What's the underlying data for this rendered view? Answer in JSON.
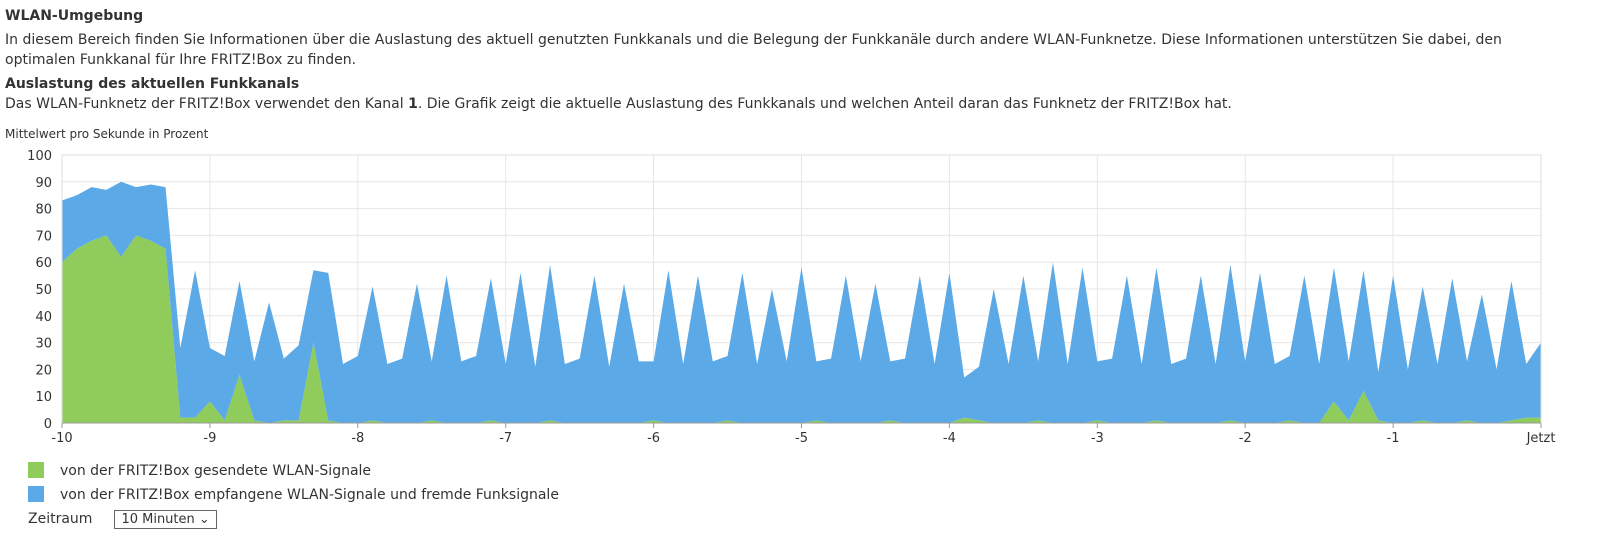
{
  "title": "WLAN-Umgebung",
  "intro": "In diesem Bereich finden Sie Informationen über die Auslastung des aktuell genutzten Funkkanals und die Belegung der Funkkanäle durch andere WLAN-Funknetze. Diese Informationen unterstützen Sie dabei, den optimalen Funkkanal für Ihre FRITZ!Box zu finden.",
  "section_title": "Auslastung des aktuellen Funkkanals",
  "section_text": [
    "Das WLAN-Funknetz der FRITZ!Box verwendet den Kanal ",
    "1",
    ". Die Grafik zeigt die aktuelle Auslastung des Funkkanals und welchen Anteil daran das Funknetz der FRITZ!Box hat."
  ],
  "period_label": "Zeitraum",
  "period_value": "10 Minuten",
  "chart_data": {
    "type": "area",
    "stacked": true,
    "y_label": "Mittelwert pro Sekunde in Prozent",
    "xlim": [
      -10,
      0
    ],
    "xticks": [
      -10,
      -9,
      -8,
      -7,
      -6,
      -5,
      -4,
      -3,
      -2,
      -1,
      {
        "value": 0,
        "label": "Jetzt"
      }
    ],
    "ylim": [
      0,
      100
    ],
    "yticks": [
      0,
      10,
      20,
      30,
      40,
      50,
      60,
      70,
      80,
      90,
      100
    ],
    "grid": true,
    "x": [
      -10,
      -9.9,
      -9.8,
      -9.7,
      -9.6,
      -9.5,
      -9.4,
      -9.3,
      -9.2,
      -9.1,
      -9,
      -8.9,
      -8.8,
      -8.7,
      -8.6,
      -8.5,
      -8.4,
      -8.3,
      -8.2,
      -8.1,
      -8,
      -7.9,
      -7.8,
      -7.7,
      -7.6,
      -7.5,
      -7.4,
      -7.3,
      -7.2,
      -7.1,
      -7,
      -6.9,
      -6.8,
      -6.7,
      -6.6,
      -6.5,
      -6.4,
      -6.3,
      -6.2,
      -6.1,
      -6,
      -5.9,
      -5.8,
      -5.7,
      -5.6,
      -5.5,
      -5.4,
      -5.3,
      -5.2,
      -5.1,
      -5,
      -4.9,
      -4.8,
      -4.7,
      -4.6,
      -4.5,
      -4.4,
      -4.3,
      -4.2,
      -4.1,
      -4,
      -3.9,
      -3.8,
      -3.7,
      -3.6,
      -3.5,
      -3.4,
      -3.3,
      -3.2,
      -3.1,
      -3,
      -2.9,
      -2.8,
      -2.7,
      -2.6,
      -2.5,
      -2.4,
      -2.3,
      -2.2,
      -2.1,
      -2,
      -1.9,
      -1.8,
      -1.7,
      -1.6,
      -1.5,
      -1.4,
      -1.3,
      -1.2,
      -1.1,
      -1,
      -0.9,
      -0.8,
      -0.7,
      -0.6,
      -0.5,
      -0.4,
      -0.3,
      -0.2,
      -0.1,
      0
    ],
    "series": [
      {
        "name": "von der FRITZ!Box gesendete WLAN-Signale",
        "color": "#8fcc5c",
        "values": [
          60,
          65,
          68,
          70,
          62,
          70,
          68,
          65,
          2,
          2,
          8,
          1,
          18,
          1,
          0,
          1,
          1,
          30,
          1,
          0,
          0,
          1,
          0,
          0,
          0,
          1,
          0,
          0,
          0,
          1,
          0,
          0,
          0,
          1,
          0,
          0,
          0,
          0,
          0,
          0,
          1,
          0,
          0,
          0,
          0,
          1,
          0,
          0,
          0,
          0,
          0,
          1,
          0,
          0,
          0,
          0,
          1,
          0,
          0,
          0,
          0,
          2,
          1,
          0,
          0,
          0,
          1,
          0,
          0,
          0,
          1,
          0,
          0,
          0,
          1,
          0,
          0,
          0,
          0,
          1,
          0,
          0,
          0,
          1,
          0,
          0,
          8,
          1,
          12,
          1,
          0,
          0,
          1,
          0,
          0,
          1,
          0,
          0,
          1,
          2,
          2
        ]
      },
      {
        "name": "von der FRITZ!Box empfangene WLAN-Signale und fremde Funksignale",
        "color": "#5ba9e6",
        "values": [
          23,
          20,
          20,
          17,
          28,
          18,
          21,
          23,
          26,
          55,
          20,
          24,
          35,
          22,
          45,
          23,
          28,
          27,
          55,
          22,
          25,
          50,
          22,
          24,
          52,
          22,
          55,
          23,
          25,
          53,
          22,
          56,
          21,
          58,
          22,
          24,
          55,
          21,
          52,
          23,
          22,
          57,
          22,
          55,
          23,
          24,
          56,
          22,
          50,
          23,
          58,
          22,
          24,
          55,
          23,
          52,
          22,
          24,
          55,
          22,
          56,
          15,
          20,
          50,
          22,
          55,
          22,
          60,
          22,
          58,
          22,
          24,
          55,
          22,
          57,
          22,
          24,
          55,
          22,
          58,
          23,
          56,
          22,
          24,
          55,
          22,
          50,
          22,
          45,
          18,
          55,
          20,
          50,
          22,
          54,
          22,
          48,
          20,
          52,
          20,
          28
        ]
      }
    ]
  }
}
